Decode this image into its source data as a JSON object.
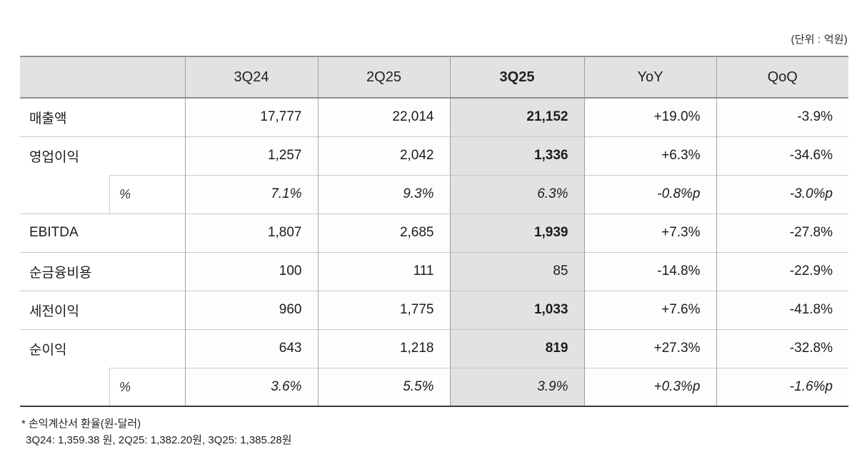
{
  "unit_label": "(단위 : 억원)",
  "table": {
    "headers": [
      "",
      "3Q24",
      "2Q25",
      "3Q25",
      "YoY",
      "QoQ"
    ],
    "rows": [
      {
        "label": "매출액",
        "percent_row": false,
        "q3_bold": true,
        "values": [
          "17,777",
          "22,014",
          "21,152",
          "+19.0%",
          "-3.9%"
        ]
      },
      {
        "label": "영업이익",
        "percent_row": false,
        "q3_bold": true,
        "values": [
          "1,257",
          "2,042",
          "1,336",
          "+6.3%",
          "-34.6%"
        ]
      },
      {
        "label": "%",
        "percent_row": true,
        "q3_bold": false,
        "values": [
          "7.1%",
          "9.3%",
          "6.3%",
          "-0.8%p",
          "-3.0%p"
        ]
      },
      {
        "label": "EBITDA",
        "percent_row": false,
        "q3_bold": true,
        "values": [
          "1,807",
          "2,685",
          "1,939",
          "+7.3%",
          "-27.8%"
        ]
      },
      {
        "label": "순금융비용",
        "percent_row": false,
        "q3_bold": false,
        "values": [
          "100",
          "111",
          "85",
          "-14.8%",
          "-22.9%"
        ]
      },
      {
        "label": "세전이익",
        "percent_row": false,
        "q3_bold": true,
        "values": [
          "960",
          "1,775",
          "1,033",
          "+7.6%",
          "-41.8%"
        ]
      },
      {
        "label": "순이익",
        "percent_row": false,
        "q3_bold": true,
        "values": [
          "643",
          "1,218",
          "819",
          "+27.3%",
          "-32.8%"
        ]
      },
      {
        "label": "%",
        "percent_row": true,
        "q3_bold": false,
        "values": [
          "3.6%",
          "5.5%",
          "3.9%",
          "+0.3%p",
          "-1.6%p"
        ]
      }
    ]
  },
  "footnote": {
    "line1": "* 손익계산서 환율(원-달러)",
    "line2": "3Q24: 1,359.38 원, 2Q25: 1,382.20원, 3Q25: 1,385.28원"
  }
}
